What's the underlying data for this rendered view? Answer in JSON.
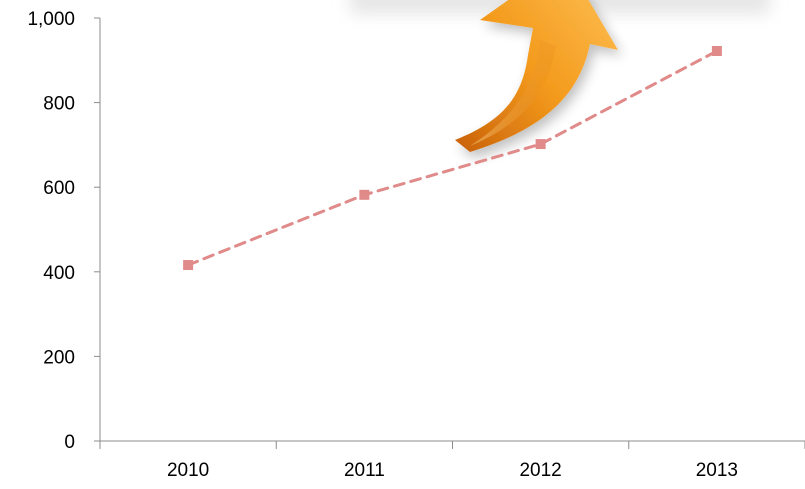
{
  "chart_data": {
    "type": "line",
    "categories": [
      "2010",
      "2011",
      "2012",
      "2013"
    ],
    "series": [
      {
        "values": [
          416,
          582,
          702,
          922
        ]
      }
    ],
    "y_ticks": [
      "0",
      "200",
      "400",
      "600",
      "800",
      "1,000"
    ],
    "ylim": [
      0,
      1000
    ],
    "grid": false,
    "legend": "none",
    "line_style": "dashed",
    "series_color": "#e08a8a",
    "arrow_color": "#f39a1c",
    "arrow_icon": "orange-curved-up-arrow-icon"
  }
}
